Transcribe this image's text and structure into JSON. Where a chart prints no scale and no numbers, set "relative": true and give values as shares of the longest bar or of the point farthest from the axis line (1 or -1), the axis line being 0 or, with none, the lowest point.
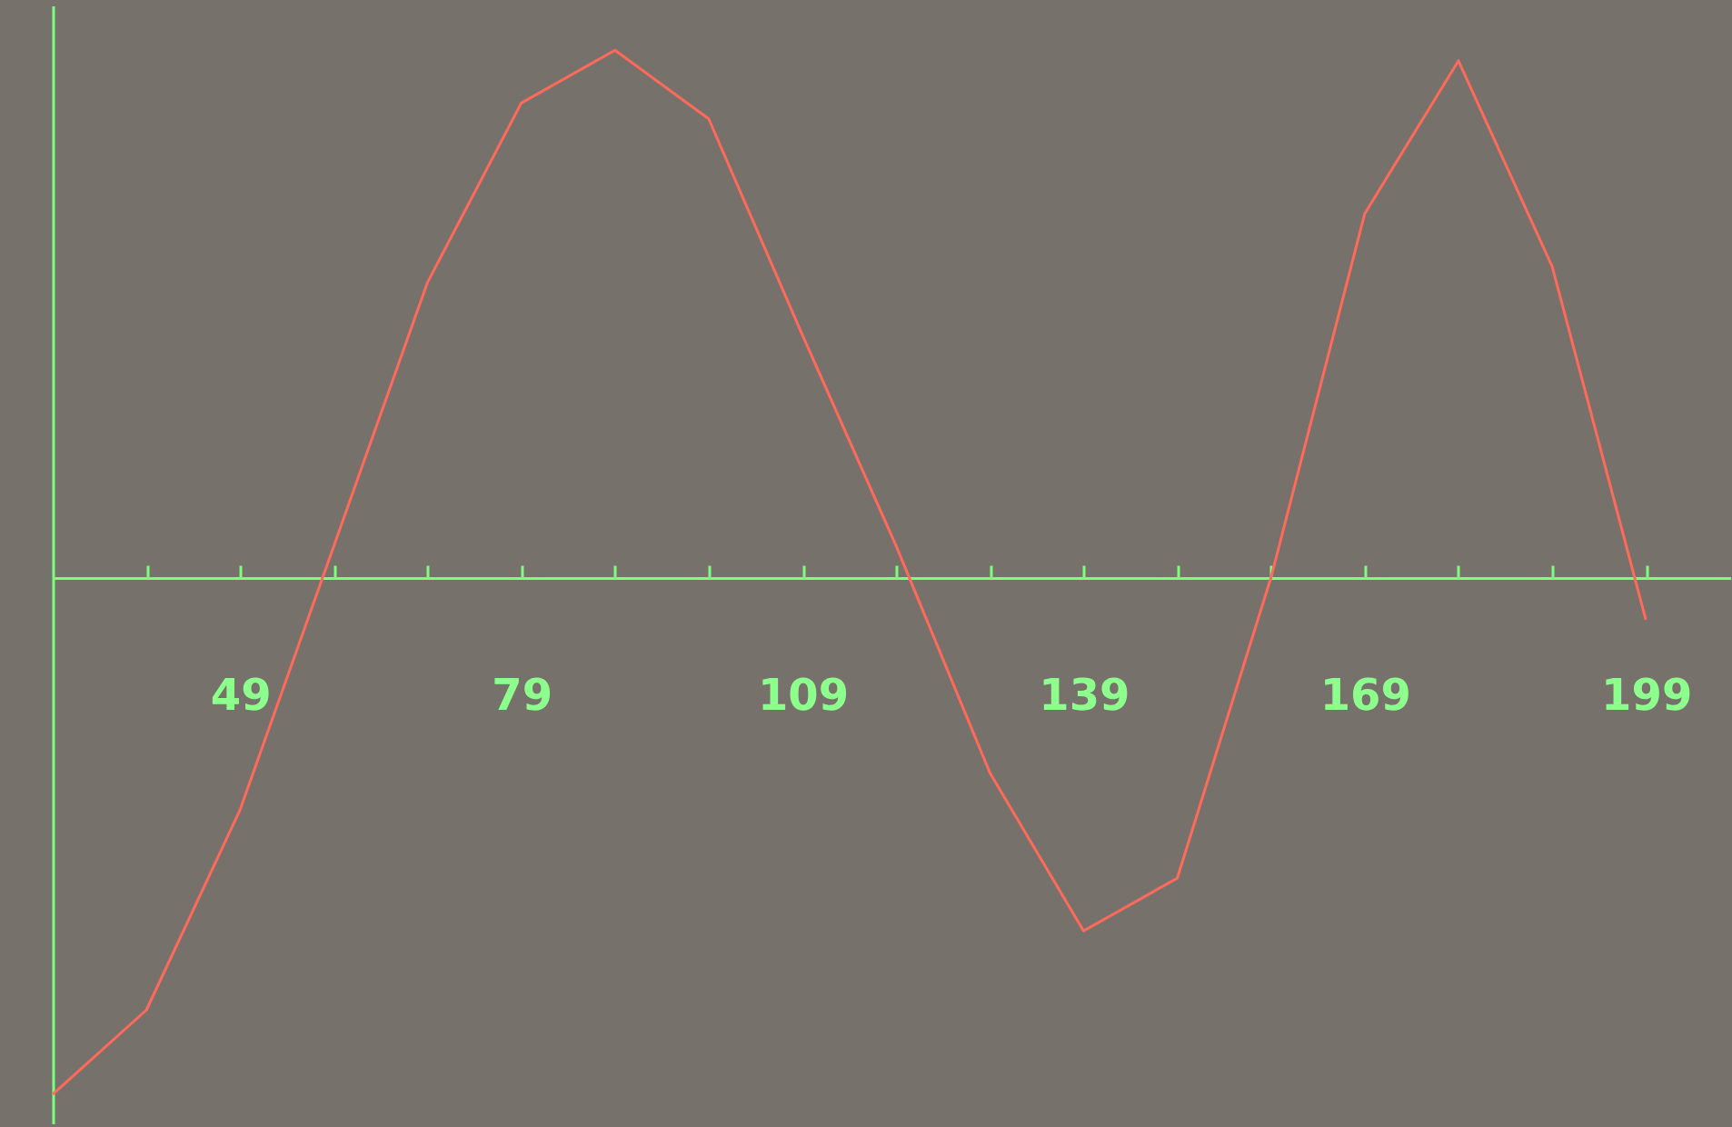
{
  "chart_data": {
    "type": "line",
    "relative": true,
    "x": [
      29,
      39,
      49,
      59,
      69,
      79,
      89,
      99,
      109,
      119,
      129,
      139,
      149,
      159,
      169,
      179,
      189,
      199
    ],
    "series": [
      {
        "color": "#ff6a5a",
        "values": [
          -0.98,
          -0.82,
          -0.44,
          0.06,
          0.56,
          0.9,
          1,
          0.87,
          0.46,
          0.06,
          -0.37,
          -0.67,
          -0.57,
          0,
          0.69,
          0.98,
          0.59,
          -0.08
        ]
      }
    ],
    "xlim": [
      29,
      208
    ],
    "xticks": [
      {
        "value": 39,
        "label": null
      },
      49,
      {
        "value": 59,
        "label": null
      },
      {
        "value": 69,
        "label": null
      },
      79,
      {
        "value": 89,
        "label": null
      },
      {
        "value": 99,
        "label": null
      },
      109,
      {
        "value": 119,
        "label": null
      },
      {
        "value": 129,
        "label": null
      },
      139,
      {
        "value": 149,
        "label": null
      },
      {
        "value": 159,
        "label": null
      },
      169,
      {
        "value": 179,
        "label": null
      },
      {
        "value": 189,
        "label": null
      },
      199
    ],
    "grid": false,
    "marker": "none",
    "line_style": "solid"
  }
}
